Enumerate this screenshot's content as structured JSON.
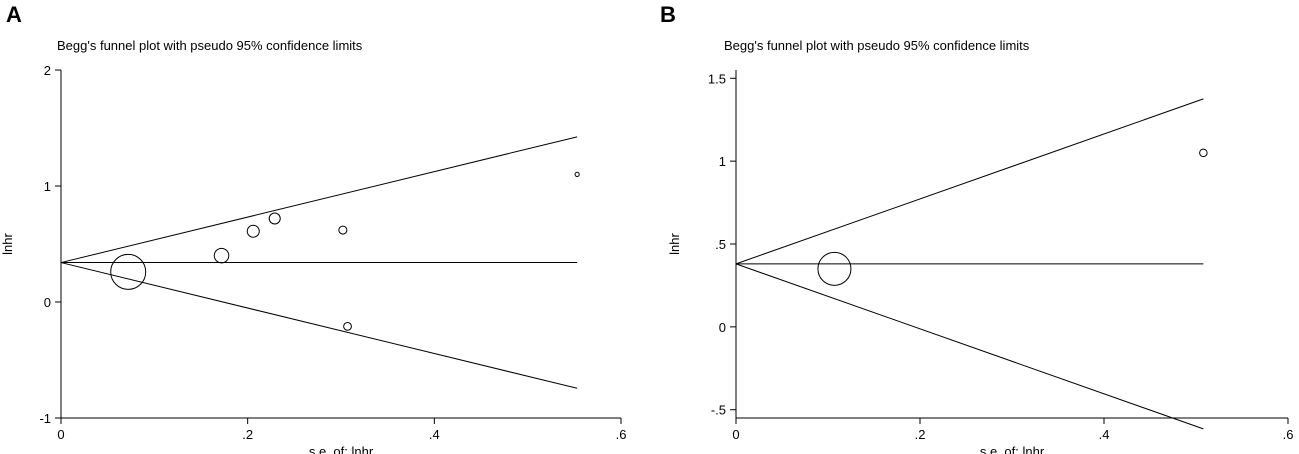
{
  "chart_data": [
    {
      "panel_label": "A",
      "type": "scatter",
      "title": "Begg's funnel plot with pseudo 95% confidence limits",
      "xlabel": "s.e. of: lnhr",
      "ylabel": "lnhr",
      "xlim": [
        0,
        0.6
      ],
      "ylim": [
        -1,
        2
      ],
      "x_ticks": [
        "0",
        ".2",
        ".4",
        ".6"
      ],
      "y_ticks": [
        "-1",
        "0",
        "1",
        "2"
      ],
      "pooled_estimate": 0.34,
      "funnel_xmax": 0.553,
      "points": [
        {
          "x": 0.072,
          "y": 0.26,
          "size": 3.5
        },
        {
          "x": 0.172,
          "y": 0.4,
          "size": 1.45
        },
        {
          "x": 0.206,
          "y": 0.61,
          "size": 1.2
        },
        {
          "x": 0.229,
          "y": 0.72,
          "size": 1.1
        },
        {
          "x": 0.302,
          "y": 0.62,
          "size": 0.8
        },
        {
          "x": 0.307,
          "y": -0.21,
          "size": 0.78
        },
        {
          "x": 0.553,
          "y": 1.1,
          "size": 0.42
        }
      ],
      "grid": false,
      "legend": "none"
    },
    {
      "panel_label": "B",
      "type": "scatter",
      "title": "Begg's funnel plot with pseudo 95% confidence limits",
      "xlabel": "s.e. of: lnhr",
      "ylabel": "lnhr",
      "xlim": [
        0,
        0.6
      ],
      "ylim": [
        -0.55,
        1.55
      ],
      "x_ticks": [
        "0",
        ".2",
        ".4",
        ".6"
      ],
      "y_ticks": [
        "-.5",
        "0",
        ".5",
        "1",
        "1.5"
      ],
      "pooled_estimate": 0.38,
      "funnel_xmax": 0.508,
      "points": [
        {
          "x": 0.107,
          "y": 0.35,
          "size": 3.3
        },
        {
          "x": 0.508,
          "y": 1.05,
          "size": 0.75
        }
      ],
      "grid": false,
      "legend": "none"
    }
  ]
}
